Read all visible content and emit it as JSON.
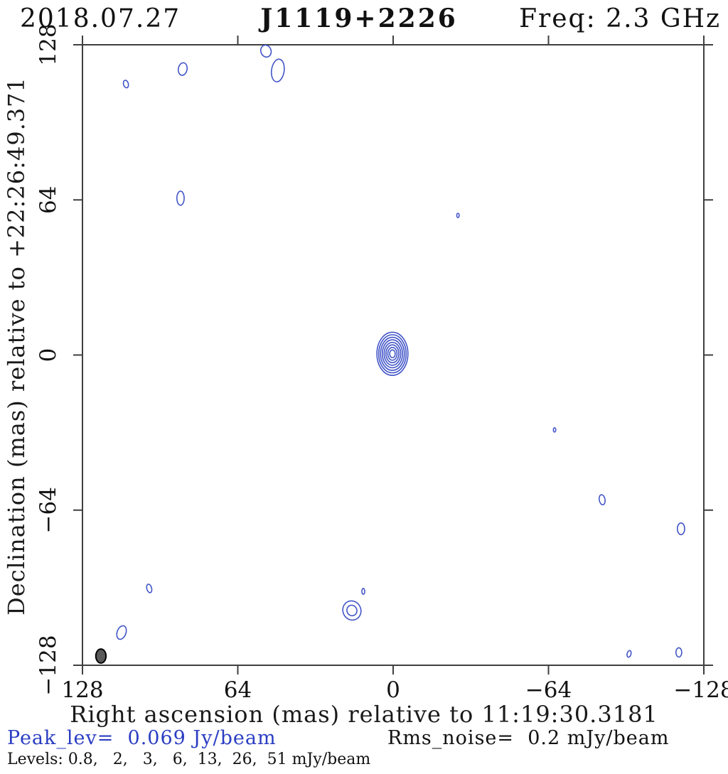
{
  "header": {
    "date": "2018.07.27",
    "source": "J1119+2226",
    "freq": "Freq: 2.3 GHz"
  },
  "footer": {
    "peak": "Peak_lev=  0.069 Jy/beam",
    "rms": "Rms_noise=  0.2 mJy/beam",
    "levels": "Levels: 0.8,   2,   3,   6,  13,  26,  51 mJy/beam"
  },
  "colors": {
    "contour": "#4356c8",
    "freq_text": "#4c66cc",
    "peak_text": "#2a3dc2",
    "axis": "#3f3f3f",
    "beam_fill": "#595959",
    "beam_stroke": "#000000"
  },
  "chart_data": {
    "type": "contour_map",
    "title": "J1119+2226",
    "epoch": "2018.07.27",
    "frequency_ghz": 2.3,
    "xlabel": "Right ascension (mas) relative to 11:19:30.3181",
    "ylabel": "Declination (mas) relative to +22:26:49.371",
    "xlim": [
      128,
      -128
    ],
    "ylim": [
      -128,
      128
    ],
    "x_ticks": [
      128,
      64,
      0,
      -64,
      -128
    ],
    "y_ticks": [
      128,
      64,
      0,
      -64,
      -128
    ],
    "contour_levels_mjy_per_beam": [
      0.8,
      2,
      3,
      6,
      13,
      26,
      51
    ],
    "peak_jy_per_beam": 0.069,
    "rms_mjy_per_beam": 0.2,
    "beam": {
      "ra": 120.4,
      "dec": -124.2,
      "rx": 2.1,
      "ry": 2.9,
      "rot": 0
    },
    "components": [
      {
        "name": "core",
        "ra": 0.3,
        "dec": 0.5,
        "rx": 6.4,
        "ry": 8.9,
        "rot": 0,
        "rings": 8
      },
      {
        "name": "noise-blob-1",
        "ra": 110.1,
        "dec": 111.8,
        "rx": 1.0,
        "ry": 1.6,
        "rot": -15,
        "rings": 1
      },
      {
        "name": "noise-blob-2",
        "ra": 86.7,
        "dec": 118.0,
        "rx": 1.8,
        "ry": 2.6,
        "rot": 10,
        "rings": 1
      },
      {
        "name": "noise-blob-3a",
        "ra": 52.4,
        "dec": 125.4,
        "rx": 2.1,
        "ry": 2.5,
        "rot": -20,
        "rings": 1
      },
      {
        "name": "noise-blob-3b",
        "ra": 47.5,
        "dec": 117.4,
        "rx": 2.6,
        "ry": 4.7,
        "rot": 8,
        "rings": 1
      },
      {
        "name": "noise-blob-4",
        "ra": 87.6,
        "dec": 64.7,
        "rx": 1.5,
        "ry": 2.9,
        "rot": 0,
        "rings": 1
      },
      {
        "name": "noise-dot-5",
        "ra": -26.7,
        "dec": 57.6,
        "rx": 0.5,
        "ry": 0.9,
        "rot": 0,
        "rings": 1
      },
      {
        "name": "noise-dot-6",
        "ra": -66.5,
        "dec": -30.9,
        "rx": 0.5,
        "ry": 0.9,
        "rot": 0,
        "rings": 1
      },
      {
        "name": "noise-blob-7",
        "ra": -86.1,
        "dec": -59.7,
        "rx": 1.2,
        "ry": 2.1,
        "rot": -10,
        "rings": 1
      },
      {
        "name": "noise-blob-8",
        "ra": -118.6,
        "dec": -71.7,
        "rx": 1.5,
        "ry": 2.4,
        "rot": 0,
        "rings": 1
      },
      {
        "name": "noise-blob-9",
        "ra": 100.5,
        "dec": -96.3,
        "rx": 1.0,
        "ry": 1.8,
        "rot": -15,
        "rings": 1
      },
      {
        "name": "noise-dot-10",
        "ra": 12.3,
        "dec": -97.5,
        "rx": 0.6,
        "ry": 1.2,
        "rot": 0,
        "rings": 1
      },
      {
        "name": "noise-blob-11",
        "ra": 17.0,
        "dec": -105.4,
        "rx": 3.7,
        "ry": 4.0,
        "rot": -25,
        "rings": 2
      },
      {
        "name": "noise-blob-12",
        "ra": 111.9,
        "dec": -114.5,
        "rx": 1.8,
        "ry": 2.9,
        "rot": 20,
        "rings": 1
      },
      {
        "name": "noise-dot-13",
        "ra": -97.2,
        "dec": -123.3,
        "rx": 0.8,
        "ry": 1.4,
        "rot": 15,
        "rings": 1
      },
      {
        "name": "noise-blob-14",
        "ra": -117.7,
        "dec": -122.7,
        "rx": 1.2,
        "ry": 1.9,
        "rot": 0,
        "rings": 1
      }
    ]
  }
}
